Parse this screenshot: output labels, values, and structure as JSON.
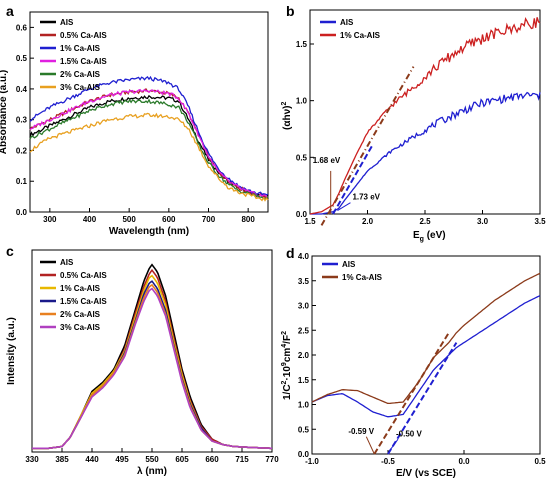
{
  "chart_data": [
    {
      "id": "a",
      "type": "line",
      "panel_letter": "a",
      "xlabel": "Wavelength (nm)",
      "ylabel": "Absorbance (a.u.)",
      "xlim": [
        250,
        850
      ],
      "ylim": [
        0.0,
        0.65
      ],
      "xticks": [
        300,
        400,
        500,
        600,
        700,
        800
      ],
      "yticks": [
        0.0,
        0.1,
        0.2,
        0.3,
        0.4,
        0.5,
        0.6
      ],
      "legend_position": "top-left",
      "x": [
        250,
        300,
        350,
        400,
        450,
        500,
        550,
        600,
        625,
        650,
        675,
        700,
        725,
        750,
        775,
        800,
        825,
        850
      ],
      "series": [
        {
          "name": "AIS",
          "color": "#000000",
          "values": [
            0.25,
            0.28,
            0.31,
            0.34,
            0.36,
            0.37,
            0.375,
            0.37,
            0.36,
            0.3,
            0.23,
            0.17,
            0.13,
            0.1,
            0.08,
            0.065,
            0.055,
            0.05
          ]
        },
        {
          "name": "0.5% Ca-AIS",
          "color": "#b22222",
          "values": [
            0.27,
            0.3,
            0.33,
            0.36,
            0.38,
            0.39,
            0.395,
            0.385,
            0.37,
            0.32,
            0.25,
            0.18,
            0.13,
            0.1,
            0.08,
            0.065,
            0.055,
            0.05
          ]
        },
        {
          "name": "1% Ca-AIS",
          "color": "#1f1fd0",
          "values": [
            0.3,
            0.34,
            0.37,
            0.4,
            0.42,
            0.43,
            0.435,
            0.42,
            0.4,
            0.34,
            0.26,
            0.19,
            0.14,
            0.11,
            0.085,
            0.07,
            0.06,
            0.055
          ]
        },
        {
          "name": "1.5% Ca-AIS",
          "color": "#e020e0",
          "values": [
            0.27,
            0.3,
            0.33,
            0.36,
            0.38,
            0.39,
            0.395,
            0.385,
            0.37,
            0.32,
            0.25,
            0.18,
            0.13,
            0.1,
            0.08,
            0.065,
            0.055,
            0.05
          ]
        },
        {
          "name": "2% Ca-AIS",
          "color": "#2a7a2a",
          "values": [
            0.24,
            0.27,
            0.3,
            0.33,
            0.35,
            0.36,
            0.36,
            0.35,
            0.34,
            0.29,
            0.22,
            0.16,
            0.12,
            0.09,
            0.07,
            0.06,
            0.05,
            0.045
          ]
        },
        {
          "name": "3% Ca-AIS",
          "color": "#e8a020",
          "values": [
            0.2,
            0.24,
            0.26,
            0.28,
            0.3,
            0.31,
            0.315,
            0.31,
            0.3,
            0.27,
            0.21,
            0.15,
            0.11,
            0.08,
            0.065,
            0.055,
            0.045,
            0.04
          ]
        }
      ]
    },
    {
      "id": "b",
      "type": "line",
      "panel_letter": "b",
      "xlabel": "Eg (eV)",
      "xlabel_main": "E",
      "xlabel_sub": "g",
      "xlabel_unit": " (eV)",
      "ylabel": "(αhν)2",
      "ylabel_main": "(αhν)",
      "ylabel_sup": "2",
      "xlim": [
        1.5,
        3.5
      ],
      "ylim": [
        0.0,
        1.8
      ],
      "xticks": [
        1.5,
        2.0,
        2.5,
        3.0,
        3.5
      ],
      "yticks": [
        0.0,
        0.5,
        1.0,
        1.5
      ],
      "legend_position": "top-left",
      "x": [
        1.5,
        1.6,
        1.7,
        1.75,
        1.8,
        1.9,
        2.0,
        2.2,
        2.4,
        2.6,
        2.8,
        3.0,
        3.2,
        3.4,
        3.5
      ],
      "series": [
        {
          "name": "AIS",
          "color": "#1f1fd0",
          "values": [
            0.0,
            0.0,
            0.02,
            0.05,
            0.12,
            0.25,
            0.38,
            0.55,
            0.68,
            0.8,
            0.9,
            0.98,
            1.02,
            1.05,
            1.04
          ]
        },
        {
          "name": "1% Ca-AIS",
          "color": "#cc2020",
          "values": [
            0.0,
            0.02,
            0.08,
            0.18,
            0.3,
            0.52,
            0.72,
            0.95,
            1.12,
            1.3,
            1.45,
            1.55,
            1.62,
            1.68,
            1.7
          ]
        }
      ],
      "fits": [
        {
          "color": "#1f1fd0",
          "x": [
            1.7,
            2.05
          ],
          "y": [
            0.0,
            0.62
          ]
        },
        {
          "color": "#8b3a1a",
          "x": [
            1.6,
            2.4
          ],
          "y": [
            -0.1,
            1.3
          ]
        }
      ],
      "annotations": [
        {
          "text": "1.68 eV",
          "color": "#8b3a1a",
          "x": 1.68
        },
        {
          "text": "1.73 eV",
          "color": "#1f1fd0",
          "x": 1.73
        }
      ]
    },
    {
      "id": "c",
      "type": "line",
      "panel_letter": "c",
      "xlabel": "λ (nm)",
      "ylabel": "Intensity (a.u.)",
      "xlim": [
        330,
        770
      ],
      "ylim": [
        0,
        1.1
      ],
      "xticks": [
        330,
        385,
        440,
        495,
        550,
        605,
        660,
        715,
        770
      ],
      "legend_position": "top-left",
      "x": [
        330,
        360,
        385,
        400,
        420,
        440,
        460,
        480,
        500,
        520,
        535,
        545,
        550,
        560,
        575,
        590,
        605,
        620,
        640,
        660,
        680,
        700,
        730,
        770
      ],
      "series": [
        {
          "name": "AIS",
          "color": "#000000",
          "values": [
            0.02,
            0.02,
            0.03,
            0.08,
            0.2,
            0.33,
            0.38,
            0.45,
            0.58,
            0.78,
            0.93,
            1.0,
            1.02,
            0.98,
            0.85,
            0.65,
            0.45,
            0.3,
            0.15,
            0.07,
            0.04,
            0.03,
            0.025,
            0.02
          ]
        },
        {
          "name": "0.5% Ca-AIS",
          "color": "#b22222",
          "values": [
            0.02,
            0.02,
            0.03,
            0.08,
            0.2,
            0.32,
            0.37,
            0.44,
            0.56,
            0.76,
            0.9,
            0.97,
            0.99,
            0.95,
            0.82,
            0.62,
            0.43,
            0.28,
            0.14,
            0.07,
            0.04,
            0.03,
            0.025,
            0.02
          ]
        },
        {
          "name": "1% Ca-AIS",
          "color": "#e8b800",
          "values": [
            0.02,
            0.02,
            0.03,
            0.08,
            0.2,
            0.32,
            0.37,
            0.44,
            0.55,
            0.74,
            0.88,
            0.95,
            0.96,
            0.92,
            0.8,
            0.6,
            0.42,
            0.27,
            0.13,
            0.06,
            0.04,
            0.03,
            0.025,
            0.02
          ]
        },
        {
          "name": "1.5% Ca-AIS",
          "color": "#1a1a8a",
          "values": [
            0.02,
            0.02,
            0.03,
            0.08,
            0.19,
            0.31,
            0.36,
            0.43,
            0.54,
            0.72,
            0.86,
            0.92,
            0.93,
            0.89,
            0.77,
            0.58,
            0.4,
            0.26,
            0.13,
            0.06,
            0.04,
            0.03,
            0.025,
            0.02
          ]
        },
        {
          "name": "2% Ca-AIS",
          "color": "#e88020",
          "values": [
            0.02,
            0.02,
            0.03,
            0.08,
            0.19,
            0.31,
            0.36,
            0.43,
            0.53,
            0.71,
            0.84,
            0.9,
            0.91,
            0.87,
            0.75,
            0.57,
            0.39,
            0.25,
            0.12,
            0.06,
            0.04,
            0.03,
            0.025,
            0.02
          ]
        },
        {
          "name": "3% Ca-AIS",
          "color": "#b040c0",
          "values": [
            0.02,
            0.02,
            0.03,
            0.08,
            0.19,
            0.3,
            0.35,
            0.42,
            0.52,
            0.7,
            0.82,
            0.88,
            0.89,
            0.85,
            0.74,
            0.56,
            0.38,
            0.24,
            0.12,
            0.06,
            0.04,
            0.03,
            0.025,
            0.02
          ]
        }
      ]
    },
    {
      "id": "d",
      "type": "line",
      "panel_letter": "d",
      "xlabel": "E/V (vs SCE)",
      "ylabel": "1/C2 109cm4/F2",
      "ylabel_parts": [
        "1/C",
        "2",
        "·10",
        "9",
        "cm",
        "4",
        "/F",
        "2"
      ],
      "xlim": [
        -1.0,
        0.5
      ],
      "ylim": [
        0.0,
        4.0
      ],
      "xticks": [
        -1.0,
        -0.5,
        0.0,
        0.5
      ],
      "yticks": [
        0.0,
        0.5,
        1.0,
        1.5,
        2.0,
        2.5,
        3.0,
        3.5,
        4.0
      ],
      "legend_position": "top-left",
      "x": [
        -1.0,
        -0.9,
        -0.8,
        -0.7,
        -0.6,
        -0.5,
        -0.4,
        -0.3,
        -0.2,
        -0.1,
        -0.05,
        0.0,
        0.1,
        0.2,
        0.3,
        0.4,
        0.5
      ],
      "series": [
        {
          "name": "AIS",
          "color": "#1f1fd0",
          "values": [
            1.05,
            1.18,
            1.22,
            1.05,
            0.85,
            0.75,
            0.8,
            1.25,
            1.7,
            2.0,
            2.15,
            2.25,
            2.45,
            2.65,
            2.85,
            3.05,
            3.2
          ]
        },
        {
          "name": "1% Ca-AIS",
          "color": "#8b3a1a",
          "values": [
            1.05,
            1.2,
            1.3,
            1.28,
            1.15,
            1.02,
            1.05,
            1.45,
            1.95,
            2.25,
            2.45,
            2.6,
            2.85,
            3.1,
            3.3,
            3.5,
            3.65
          ]
        }
      ],
      "fits": [
        {
          "color": "#1f1fd0",
          "x": [
            -0.5,
            -0.05
          ],
          "y": [
            0.0,
            2.25
          ]
        },
        {
          "color": "#8b3a1a",
          "x": [
            -0.59,
            -0.1
          ],
          "y": [
            0.0,
            2.45
          ]
        }
      ],
      "annotations": [
        {
          "text": "-0.59 V",
          "color": "#8b3a1a",
          "x": -0.59
        },
        {
          "text": "-0.50 V",
          "color": "#1f1fd0",
          "x": -0.5
        }
      ]
    }
  ]
}
